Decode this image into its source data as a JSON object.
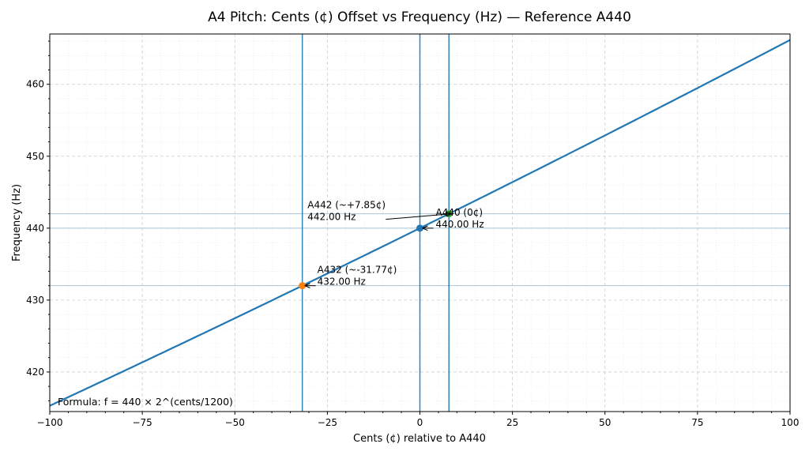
{
  "chart_data": {
    "type": "line",
    "title": "A4 Pitch: Cents (¢) Offset vs Frequency (Hz) — Reference A440",
    "xlabel": "Cents (¢) relative to A440",
    "ylabel": "Frequency (Hz)",
    "xlim": [
      -100,
      100
    ],
    "ylim": [
      414.5,
      467.0
    ],
    "x_ticks": [
      -100,
      -75,
      -50,
      -25,
      0,
      25,
      50,
      75,
      100
    ],
    "x_tick_labels": [
      "−100",
      "−75",
      "−50",
      "−25",
      "0",
      "25",
      "50",
      "75",
      "100"
    ],
    "y_ticks": [
      420,
      430,
      440,
      450,
      460
    ],
    "y_tick_labels": [
      "420",
      "430",
      "440",
      "450",
      "460"
    ],
    "grid": true,
    "minor_grid": true,
    "series": [
      {
        "formula_ref": 440,
        "x_range": [
          -100,
          100
        ],
        "color": "#1f77b4"
      }
    ],
    "points": [
      {
        "cents": 0,
        "hz": 440.0,
        "color": "#1f77b4",
        "label_line1": "A440 (0¢)",
        "label_line2": "440.00 Hz"
      },
      {
        "cents": -31.77,
        "hz": 432.0,
        "color": "#ff7f0e",
        "label_line1": "A432 (~-31.77¢)",
        "label_line2": "432.00 Hz"
      },
      {
        "cents": 7.85,
        "hz": 442.0,
        "color": "#2ca02c",
        "label_line1": "A442 (~+7.85¢)",
        "label_line2": "442.00 Hz"
      }
    ],
    "vlines": [
      -31.77,
      0,
      7.85
    ],
    "hlines": [
      432,
      440,
      442
    ],
    "annotation": "Formula:  f = 440 × 2^(cents/1200)"
  }
}
